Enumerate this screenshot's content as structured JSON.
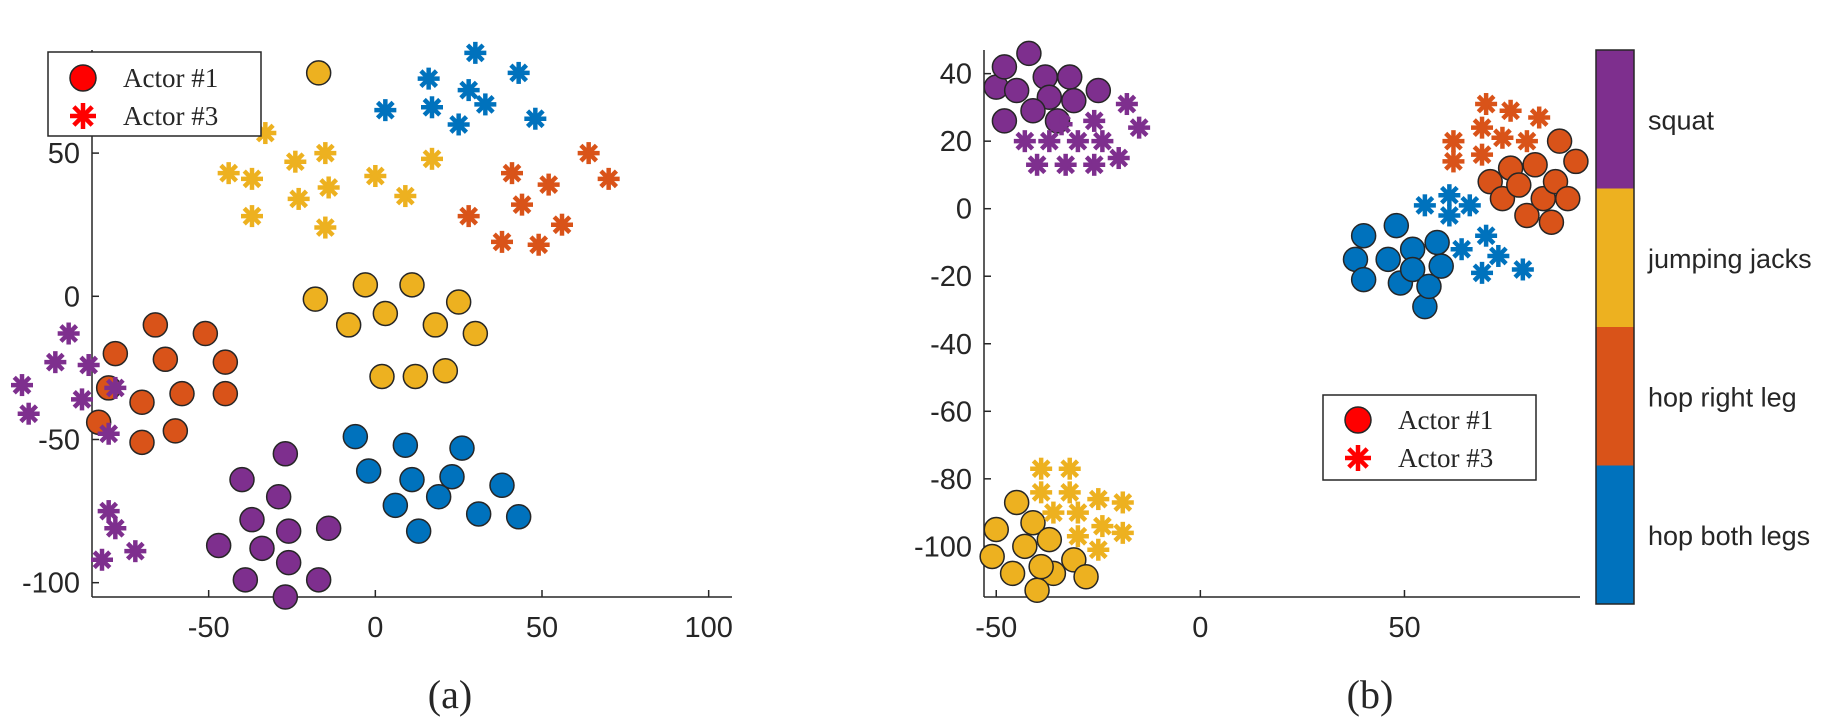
{
  "colors": {
    "squat": "#7E2F8E",
    "jumping_jacks": "#EDB120",
    "hop_right_leg": "#D95319",
    "hop_both_legs": "#0072BD",
    "legend_marker": "#FF0000",
    "axis": "#262626"
  },
  "chart_data": [
    {
      "type": "scatter",
      "panel_label": "(a)",
      "xlim": [
        -85,
        107
      ],
      "ylim": [
        -105,
        86
      ],
      "xticks": [
        -50,
        0,
        50,
        100
      ],
      "yticks": [
        -100,
        -50,
        0,
        50
      ],
      "grid": false,
      "legend": {
        "position": "top-left",
        "entries": [
          {
            "label": "Actor #1",
            "marker": "circle"
          },
          {
            "label": "Actor #3",
            "marker": "asterisk"
          }
        ]
      },
      "series": [
        {
          "class": "hop_right_leg",
          "actor": 1,
          "marker": "circle",
          "points": [
            [
              -83,
              -44
            ],
            [
              -78,
              -20
            ],
            [
              -80,
              -32
            ],
            [
              -70,
              -37
            ],
            [
              -66,
              -10
            ],
            [
              -63,
              -22
            ],
            [
              -70,
              -51
            ],
            [
              -60,
              -47
            ],
            [
              -58,
              -34
            ],
            [
              -51,
              -13
            ],
            [
              -45,
              -23
            ],
            [
              -45,
              -34
            ]
          ]
        },
        {
          "class": "hop_right_leg",
          "actor": 3,
          "marker": "asterisk",
          "points": [
            [
              28,
              28
            ],
            [
              38,
              19
            ],
            [
              41,
              43
            ],
            [
              44,
              32
            ],
            [
              49,
              18
            ],
            [
              52,
              39
            ],
            [
              56,
              25
            ],
            [
              64,
              50
            ],
            [
              70,
              41
            ]
          ]
        },
        {
          "class": "jumping_jacks",
          "actor": 1,
          "marker": "circle",
          "points": [
            [
              -18,
              -1
            ],
            [
              -8,
              -10
            ],
            [
              -3,
              4
            ],
            [
              3,
              -6
            ],
            [
              2,
              -28
            ],
            [
              11,
              4
            ],
            [
              12,
              -28
            ],
            [
              18,
              -10
            ],
            [
              21,
              -26
            ],
            [
              25,
              -2
            ],
            [
              30,
              -13
            ],
            [
              -17,
              78
            ]
          ]
        },
        {
          "class": "jumping_jacks",
          "actor": 3,
          "marker": "asterisk",
          "points": [
            [
              -44,
              43
            ],
            [
              -33,
              57
            ],
            [
              -37,
              41
            ],
            [
              -37,
              28
            ],
            [
              -24,
              47
            ],
            [
              -23,
              34
            ],
            [
              -15,
              50
            ],
            [
              -14,
              38
            ],
            [
              -15,
              24
            ],
            [
              0,
              42
            ],
            [
              9,
              35
            ],
            [
              17,
              48
            ]
          ]
        },
        {
          "class": "hop_both_legs",
          "actor": 1,
          "marker": "circle",
          "points": [
            [
              -6,
              -49
            ],
            [
              -2,
              -61
            ],
            [
              6,
              -73
            ],
            [
              9,
              -52
            ],
            [
              11,
              -64
            ],
            [
              13,
              -82
            ],
            [
              19,
              -70
            ],
            [
              23,
              -63
            ],
            [
              26,
              -53
            ],
            [
              31,
              -76
            ],
            [
              38,
              -66
            ],
            [
              43,
              -77
            ]
          ]
        },
        {
          "class": "hop_both_legs",
          "actor": 3,
          "marker": "asterisk",
          "points": [
            [
              3,
              65
            ],
            [
              16,
              76
            ],
            [
              17,
              66
            ],
            [
              25,
              60
            ],
            [
              28,
              72
            ],
            [
              30,
              85
            ],
            [
              33,
              67
            ],
            [
              43,
              78
            ],
            [
              48,
              62
            ]
          ]
        },
        {
          "class": "squat",
          "actor": 1,
          "marker": "circle",
          "points": [
            [
              -47,
              -87
            ],
            [
              -40,
              -64
            ],
            [
              -39,
              -99
            ],
            [
              -37,
              -78
            ],
            [
              -34,
              -88
            ],
            [
              -29,
              -70
            ],
            [
              -27,
              -55
            ],
            [
              -26,
              -82
            ],
            [
              -26,
              -93
            ],
            [
              -27,
              -105
            ],
            [
              -17,
              -99
            ],
            [
              -14,
              -81
            ]
          ]
        },
        {
          "class": "squat",
          "actor": 3,
          "marker": "asterisk",
          "points": [
            [
              -72,
              -89
            ],
            [
              -78,
              -81
            ],
            [
              -82,
              -92
            ],
            [
              -80,
              -75
            ],
            [
              -78,
              -32
            ],
            [
              -80,
              -48
            ],
            [
              -86,
              -24
            ],
            [
              -88,
              -36
            ],
            [
              -92,
              -13
            ],
            [
              -96,
              -23
            ],
            [
              -104,
              -41
            ],
            [
              -106,
              -31
            ]
          ]
        }
      ]
    },
    {
      "type": "scatter",
      "panel_label": "(b)",
      "xlim": [
        -53,
        93
      ],
      "ylim": [
        -115,
        47
      ],
      "xticks": [
        -50,
        0,
        50
      ],
      "yticks": [
        -100,
        -80,
        -60,
        -40,
        -20,
        0,
        20,
        40
      ],
      "grid": false,
      "legend": {
        "position": "center-right",
        "entries": [
          {
            "label": "Actor #1",
            "marker": "circle"
          },
          {
            "label": "Actor #3",
            "marker": "asterisk"
          }
        ]
      },
      "colorbar": {
        "labels": [
          "squat",
          "jumping jacks",
          "hop right leg",
          "hop both legs"
        ]
      },
      "series": [
        {
          "class": "squat",
          "actor": 1,
          "marker": "circle",
          "points": [
            [
              -50,
              36
            ],
            [
              -48,
              42
            ],
            [
              -45,
              35
            ],
            [
              -42,
              46
            ],
            [
              -38,
              39
            ],
            [
              -37,
              33
            ],
            [
              -32,
              39
            ],
            [
              -31,
              32
            ],
            [
              -41,
              29
            ],
            [
              -35,
              26
            ],
            [
              -48,
              26
            ],
            [
              -25,
              35
            ]
          ]
        },
        {
          "class": "squat",
          "actor": 3,
          "marker": "asterisk",
          "points": [
            [
              -43,
              20
            ],
            [
              -40,
              13
            ],
            [
              -37,
              20
            ],
            [
              -34,
              25
            ],
            [
              -33,
              13
            ],
            [
              -30,
              20
            ],
            [
              -26,
              26
            ],
            [
              -24,
              20
            ],
            [
              -20,
              15
            ],
            [
              -15,
              24
            ],
            [
              -18,
              31
            ],
            [
              -26,
              13
            ]
          ]
        },
        {
          "class": "jumping_jacks",
          "actor": 1,
          "marker": "circle",
          "points": [
            [
              -50,
              -95
            ],
            [
              -45,
              -87
            ],
            [
              -43,
              -100
            ],
            [
              -41,
              -93
            ],
            [
              -37,
              -98
            ],
            [
              -36,
              -108
            ],
            [
              -31,
              -104
            ],
            [
              -46,
              -108
            ],
            [
              -40,
              -113
            ],
            [
              -28,
              -109
            ],
            [
              -51,
              -103
            ],
            [
              -39,
              -106
            ]
          ]
        },
        {
          "class": "jumping_jacks",
          "actor": 3,
          "marker": "asterisk",
          "points": [
            [
              -39,
              -77
            ],
            [
              -39,
              -84
            ],
            [
              -32,
              -77
            ],
            [
              -32,
              -84
            ],
            [
              -36,
              -90
            ],
            [
              -30,
              -90
            ],
            [
              -25,
              -86
            ],
            [
              -19,
              -87
            ],
            [
              -24,
              -94
            ],
            [
              -30,
              -97
            ],
            [
              -19,
              -96
            ],
            [
              -25,
              -101
            ]
          ]
        },
        {
          "class": "hop_right_leg",
          "actor": 1,
          "marker": "circle",
          "points": [
            [
              71,
              8
            ],
            [
              74,
              3
            ],
            [
              76,
              12
            ],
            [
              78,
              7
            ],
            [
              80,
              -2
            ],
            [
              82,
              13
            ],
            [
              84,
              3
            ],
            [
              86,
              -4
            ],
            [
              87,
              8
            ],
            [
              88,
              20
            ],
            [
              92,
              14
            ],
            [
              90,
              3
            ]
          ]
        },
        {
          "class": "hop_right_leg",
          "actor": 3,
          "marker": "asterisk",
          "points": [
            [
              62,
              20
            ],
            [
              62,
              14
            ],
            [
              69,
              24
            ],
            [
              69,
              16
            ],
            [
              70,
              31
            ],
            [
              74,
              21
            ],
            [
              76,
              29
            ],
            [
              80,
              20
            ],
            [
              83,
              27
            ]
          ]
        },
        {
          "class": "hop_both_legs",
          "actor": 1,
          "marker": "circle",
          "points": [
            [
              38,
              -15
            ],
            [
              40,
              -21
            ],
            [
              40,
              -8
            ],
            [
              46,
              -15
            ],
            [
              48,
              -5
            ],
            [
              49,
              -22
            ],
            [
              52,
              -12
            ],
            [
              52,
              -18
            ],
            [
              55,
              -29
            ],
            [
              56,
              -23
            ],
            [
              58,
              -10
            ],
            [
              59,
              -17
            ]
          ]
        },
        {
          "class": "hop_both_legs",
          "actor": 3,
          "marker": "asterisk",
          "points": [
            [
              55,
              1
            ],
            [
              61,
              4
            ],
            [
              61,
              -2
            ],
            [
              66,
              1
            ],
            [
              64,
              -12
            ],
            [
              69,
              -19
            ],
            [
              70,
              -8
            ],
            [
              73,
              -14
            ],
            [
              79,
              -18
            ]
          ]
        }
      ]
    }
  ]
}
